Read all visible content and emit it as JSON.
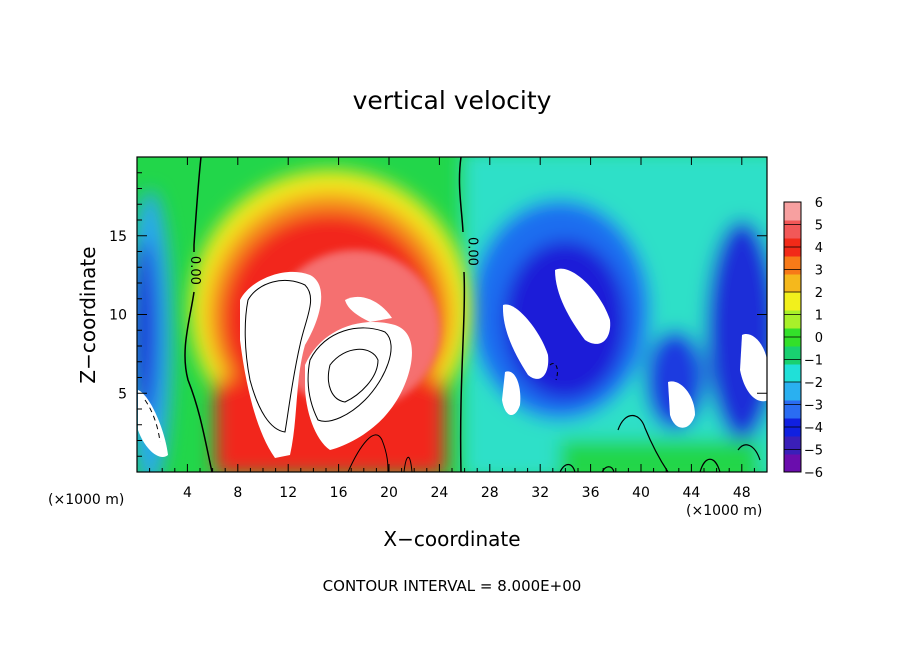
{
  "chart_data": {
    "type": "heatmap",
    "title": "vertical velocity",
    "xlabel": "X−coordinate",
    "ylabel": "Z−coordinate",
    "x_unit_label_left": "(×1000 m)",
    "x_unit_label_right": "(×1000 m)",
    "footer": "CONTOUR INTERVAL = 8.000E+00",
    "xlim": [
      0,
      50
    ],
    "ylim": [
      0,
      20
    ],
    "x_ticks": [
      "4",
      "8",
      "12",
      "16",
      "20",
      "24",
      "28",
      "32",
      "36",
      "40",
      "44",
      "48"
    ],
    "y_ticks": [
      "5",
      "10",
      "15"
    ],
    "contour_labels": [
      {
        "text": "0.00",
        "x": 4.3,
        "z": 12.8
      },
      {
        "text": "0.00",
        "x": 26.3,
        "z": 14.0
      }
    ],
    "colorbar": {
      "min": -6,
      "max": 6,
      "tick_labels": [
        "6",
        "5",
        "4",
        "3",
        "2",
        "1",
        "0",
        "−1",
        "−2",
        "−3",
        "−4",
        "−5",
        "−6"
      ],
      "colors": [
        "#6a0dad",
        "#3a1fb8",
        "#1020e0",
        "#2a6cf2",
        "#2ab0f0",
        "#20e0d8",
        "#19d070",
        "#33e02a",
        "#a8f02a",
        "#f2f01c",
        "#f5b81c",
        "#f77a18",
        "#f22a18",
        "#f25858",
        "#f7a0a0"
      ]
    },
    "features": [
      {
        "kind": "updraft",
        "label": "positive core (saturated white)",
        "x": 10.5,
        "z": 9.0,
        "rx": 3.0,
        "rz": 5.5
      },
      {
        "kind": "updraft",
        "label": "positive core (saturated white)",
        "x": 17.5,
        "z": 6.5,
        "rx": 3.5,
        "rz": 4.0
      },
      {
        "kind": "updraft_halo",
        "x": 14.5,
        "z": 11.0,
        "rx": 10.5,
        "rz": 8.5
      },
      {
        "kind": "downdraft",
        "x": 33.0,
        "z": 9.0,
        "rx": 7.5,
        "rz": 6.5
      },
      {
        "kind": "downdraft",
        "x": 47.5,
        "z": 8.0,
        "rx": 3.5,
        "rz": 7.0
      },
      {
        "kind": "downdraft",
        "x": 1.0,
        "z": 8.0,
        "rx": 1.5,
        "rz": 5.0
      }
    ]
  }
}
